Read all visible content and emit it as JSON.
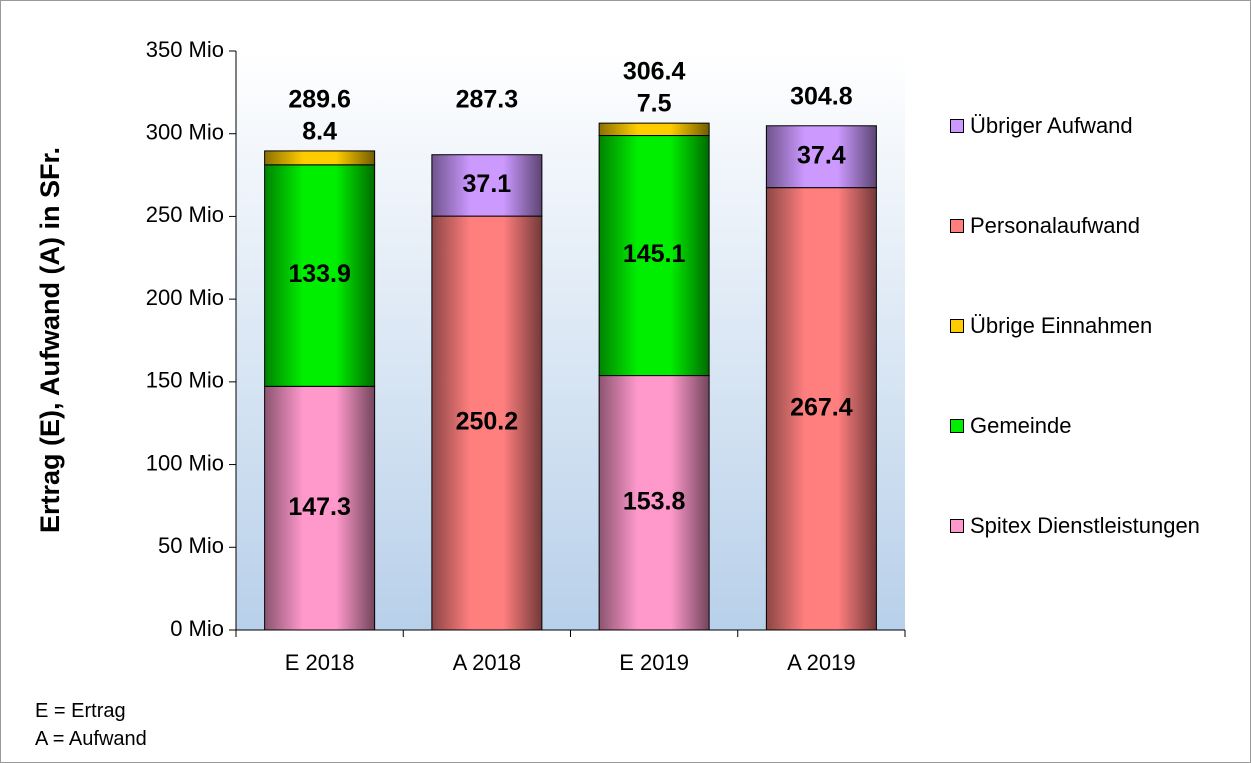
{
  "chart_data": {
    "type": "stacked_bar",
    "y_label": "Ertrag (E), Aufwand (A) in SFr.",
    "categories": [
      "E 2018",
      "A 2018",
      "E 2019",
      "A 2019"
    ],
    "series": [
      {
        "name": "Spitex Dienstleistungen",
        "color": "#ff99cc",
        "values": [
          147.3,
          null,
          153.8,
          null
        ]
      },
      {
        "name": "Gemeinde",
        "color": "#00ee00",
        "values": [
          133.9,
          null,
          145.1,
          null
        ]
      },
      {
        "name": "Übrige Einnahmen",
        "color": "#ffcc00",
        "values": [
          8.4,
          null,
          7.5,
          null
        ]
      },
      {
        "name": "Personalaufwand",
        "color": "#ff7f7f",
        "values": [
          null,
          250.2,
          null,
          267.4
        ]
      },
      {
        "name": "Übriger Aufwand",
        "color": "#cc99ff",
        "values": [
          null,
          37.1,
          null,
          37.4
        ]
      }
    ],
    "totals": [
      289.6,
      287.3,
      306.4,
      304.8
    ],
    "ylim": [
      0,
      350
    ],
    "yticks": [
      {
        "value": 0,
        "label": "0 Mio"
      },
      {
        "value": 50,
        "label": "50 Mio"
      },
      {
        "value": 100,
        "label": "100 Mio"
      },
      {
        "value": 150,
        "label": "150 Mio"
      },
      {
        "value": 200,
        "label": "200 Mio"
      },
      {
        "value": 250,
        "label": "250 Mio"
      },
      {
        "value": 300,
        "label": "300 Mio"
      },
      {
        "value": 350,
        "label": "350 Mio"
      }
    ],
    "legend": "right",
    "footnotes": [
      "E = Ertrag",
      "A = Aufwand"
    ]
  }
}
